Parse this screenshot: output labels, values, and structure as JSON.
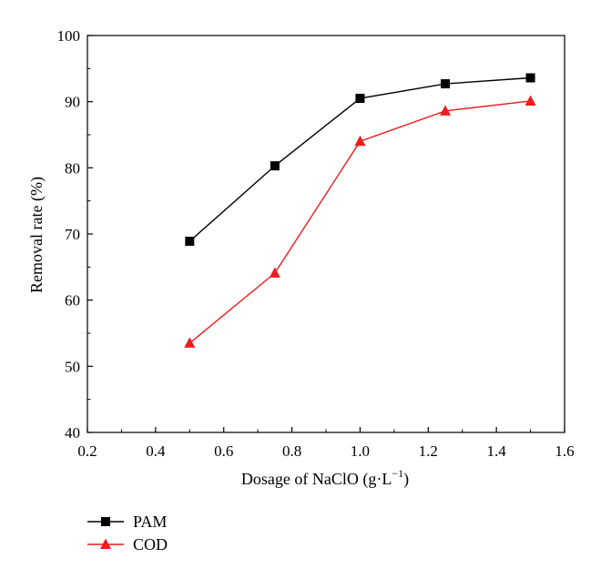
{
  "chart_data": {
    "type": "line",
    "xlabel": "Dosage of NaClO (g·L",
    "xlabel_sup": "−1",
    "xlabel_tail": ")",
    "ylabel": "Removal rate (%)",
    "xlim": [
      0.2,
      1.6
    ],
    "ylim": [
      40,
      100
    ],
    "xticks": [
      "0.2",
      "0.4",
      "0.6",
      "0.8",
      "1.0",
      "1.2",
      "1.4",
      "1.6"
    ],
    "yticks": [
      "40",
      "50",
      "60",
      "70",
      "80",
      "90",
      "100"
    ],
    "grid": false,
    "legend_position": "bottom-left, below plot",
    "x": [
      0.5,
      0.75,
      1.0,
      1.25,
      1.5
    ],
    "series": [
      {
        "name": "PAM",
        "values": [
          68.9,
          80.3,
          90.5,
          92.7,
          93.6
        ],
        "color": "#000000",
        "marker": "square"
      },
      {
        "name": "COD",
        "values": [
          53.5,
          64.1,
          84.0,
          88.6,
          90.1
        ],
        "color": "#ee1c1c",
        "marker": "triangle"
      }
    ]
  }
}
